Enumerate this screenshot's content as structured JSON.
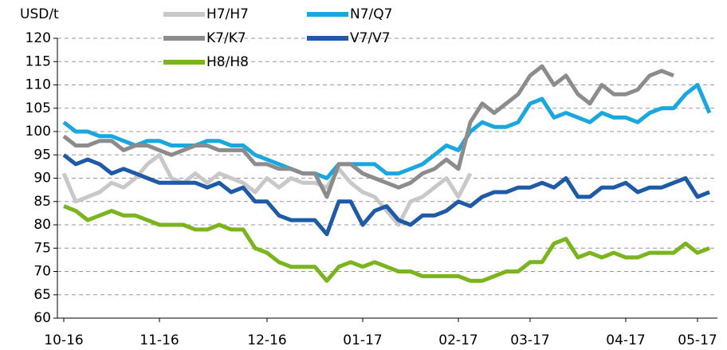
{
  "chart_data": {
    "type": "line",
    "y_label": "USD/t",
    "categories": [
      "10-16",
      null,
      null,
      null,
      null,
      null,
      null,
      null,
      "11-16",
      null,
      null,
      null,
      null,
      null,
      null,
      null,
      null,
      "12-16",
      null,
      null,
      null,
      null,
      null,
      null,
      null,
      "01-17",
      null,
      null,
      null,
      null,
      null,
      null,
      null,
      "02-17",
      null,
      null,
      null,
      null,
      null,
      "03-17",
      null,
      null,
      null,
      null,
      null,
      null,
      null,
      "04-17",
      null,
      null,
      null,
      null,
      null,
      "05-17",
      null
    ],
    "ylim": [
      60,
      120
    ],
    "yticks": [
      60,
      65,
      70,
      75,
      80,
      85,
      90,
      95,
      100,
      105,
      110,
      115,
      120
    ],
    "grid": true,
    "series": [
      {
        "name": "H7/H7",
        "color": "#c8c8c8",
        "values": [
          91,
          85,
          86,
          87,
          89,
          88,
          90,
          93,
          95,
          90,
          89,
          91,
          89,
          91,
          90,
          89,
          87,
          90,
          88,
          90,
          89,
          89,
          88,
          92,
          89,
          87,
          86,
          83,
          80,
          85,
          86,
          88,
          90,
          86,
          91,
          null,
          null,
          null,
          null,
          null,
          null,
          null,
          null,
          null,
          null,
          null,
          null,
          null,
          null,
          null,
          null,
          null,
          null,
          null,
          null
        ]
      },
      {
        "name": "N7/Q7",
        "color": "#1aa7e0",
        "values": [
          102,
          100,
          100,
          99,
          99,
          98,
          97,
          98,
          98,
          97,
          97,
          97,
          98,
          98,
          97,
          97,
          95,
          94,
          93,
          92,
          91,
          91,
          90,
          93,
          93,
          93,
          93,
          91,
          91,
          92,
          93,
          95,
          97,
          96,
          100,
          102,
          101,
          101,
          102,
          106,
          107,
          103,
          104,
          103,
          102,
          104,
          103,
          103,
          102,
          104,
          105,
          105,
          108,
          110,
          104
        ]
      },
      {
        "name": "K7/K7",
        "color": "#8c8c8c",
        "values": [
          99,
          97,
          97,
          98,
          98,
          96,
          97,
          97,
          96,
          95,
          96,
          97,
          97,
          96,
          96,
          96,
          93,
          93,
          92,
          92,
          91,
          91,
          86,
          93,
          93,
          91,
          90,
          89,
          88,
          89,
          91,
          92,
          94,
          92,
          102,
          106,
          104,
          106,
          108,
          112,
          114,
          110,
          112,
          108,
          106,
          110,
          108,
          108,
          109,
          112,
          113,
          112,
          null,
          null,
          null
        ]
      },
      {
        "name": "V7/V7",
        "color": "#1f5aa6",
        "values": [
          95,
          93,
          94,
          93,
          91,
          92,
          91,
          90,
          89,
          89,
          89,
          89,
          88,
          89,
          87,
          88,
          85,
          85,
          82,
          81,
          81,
          81,
          78,
          85,
          85,
          80,
          83,
          84,
          81,
          80,
          82,
          82,
          83,
          85,
          84,
          86,
          87,
          87,
          88,
          88,
          89,
          88,
          90,
          86,
          86,
          88,
          88,
          89,
          87,
          88,
          88,
          89,
          90,
          86,
          87
        ]
      },
      {
        "name": "H8/H8",
        "color": "#7ab51d",
        "values": [
          84,
          83,
          81,
          82,
          83,
          82,
          82,
          81,
          80,
          80,
          80,
          79,
          79,
          80,
          79,
          79,
          75,
          74,
          72,
          71,
          71,
          71,
          68,
          71,
          72,
          71,
          72,
          71,
          70,
          70,
          69,
          69,
          69,
          69,
          68,
          68,
          69,
          70,
          70,
          72,
          72,
          76,
          77,
          73,
          74,
          73,
          74,
          73,
          73,
          74,
          74,
          74,
          76,
          74,
          75
        ]
      }
    ]
  }
}
